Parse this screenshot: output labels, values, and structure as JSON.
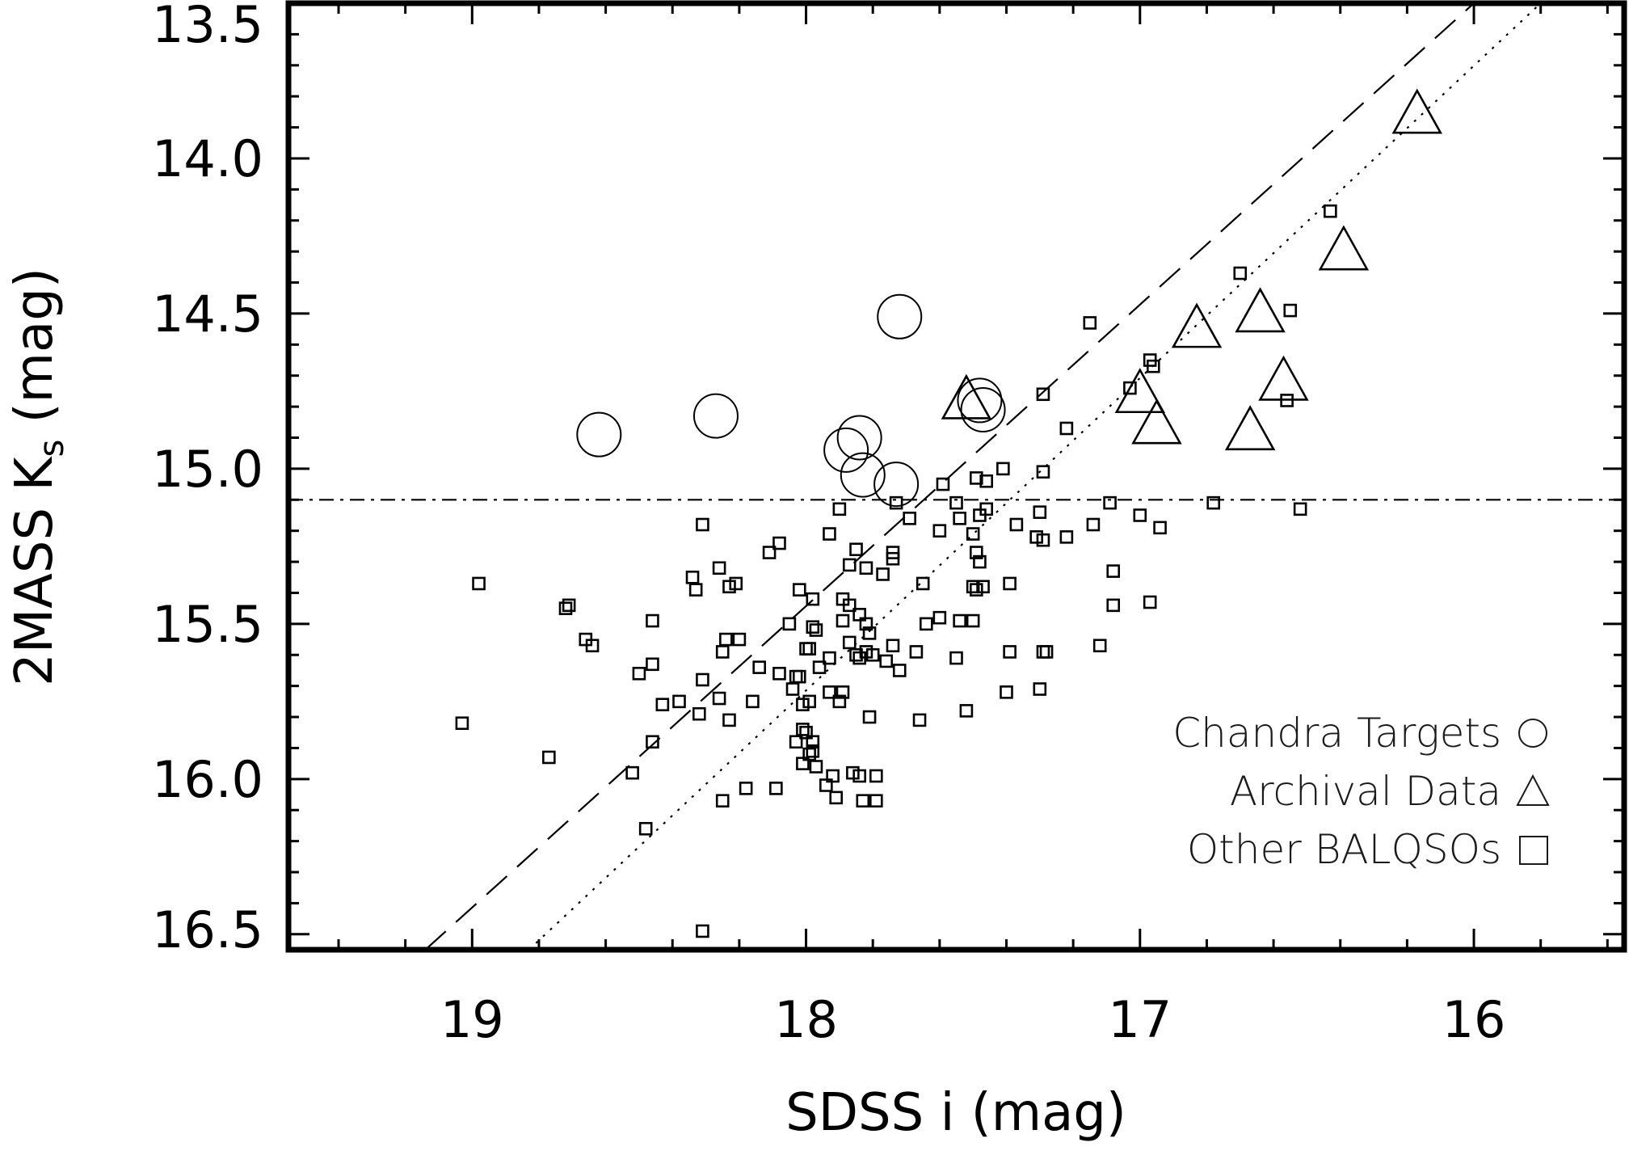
{
  "chart_data": {
    "type": "scatter",
    "xlabel": "SDSS i (mag)",
    "ylabel_main": "2MASS K",
    "ylabel_sub": "s",
    "ylabel_unit": " (mag)",
    "xlim": [
      19.55,
      15.55
    ],
    "ylim": [
      16.55,
      13.5
    ],
    "x_ticks": [
      19,
      18,
      17,
      16
    ],
    "x_tick_labels": [
      "19",
      "18",
      "17",
      "16"
    ],
    "y_ticks": [
      13.5,
      14.0,
      14.5,
      15.0,
      15.5,
      16.0,
      16.5
    ],
    "y_tick_labels": [
      "13.5",
      "14.0",
      "14.5",
      "15.0",
      "15.5",
      "16.0",
      "16.5"
    ],
    "grid": false,
    "legend_position": "bottom-right",
    "reference_lines": [
      {
        "style": "dashed",
        "points": [
          [
            19.14,
            16.55
          ],
          [
            16.0,
            13.5
          ]
        ]
      },
      {
        "style": "dotted",
        "points": [
          [
            18.83,
            16.55
          ],
          [
            15.8,
            13.5
          ]
        ]
      },
      {
        "style": "dash-dot",
        "points": [
          [
            19.55,
            15.1
          ],
          [
            15.55,
            15.1
          ]
        ]
      }
    ],
    "series": [
      {
        "name": "Chandra Targets",
        "marker": "circle",
        "points": [
          [
            18.62,
            14.89
          ],
          [
            18.27,
            14.83
          ],
          [
            17.72,
            14.51
          ],
          [
            17.48,
            14.78
          ],
          [
            17.47,
            14.81
          ],
          [
            17.84,
            14.9
          ],
          [
            17.88,
            14.94
          ],
          [
            17.83,
            15.02
          ],
          [
            17.73,
            15.05
          ]
        ]
      },
      {
        "name": "Archival Data",
        "marker": "triangle",
        "points": [
          [
            16.17,
            13.86
          ],
          [
            16.39,
            14.3
          ],
          [
            16.83,
            14.55
          ],
          [
            16.64,
            14.5
          ],
          [
            16.57,
            14.72
          ],
          [
            17.0,
            14.76
          ],
          [
            16.95,
            14.86
          ],
          [
            16.67,
            14.88
          ],
          [
            17.52,
            14.78
          ]
        ]
      },
      {
        "name": "Other BALQSOs",
        "marker": "square",
        "points": [
          [
            16.43,
            14.17
          ],
          [
            16.7,
            14.37
          ],
          [
            17.15,
            14.53
          ],
          [
            16.55,
            14.49
          ],
          [
            16.97,
            14.65
          ],
          [
            16.96,
            14.67
          ],
          [
            17.03,
            14.74
          ],
          [
            16.56,
            14.78
          ],
          [
            17.29,
            14.76
          ],
          [
            17.22,
            14.87
          ],
          [
            17.41,
            15.0
          ],
          [
            17.49,
            15.03
          ],
          [
            17.46,
            15.04
          ],
          [
            17.29,
            15.01
          ],
          [
            17.59,
            15.05
          ],
          [
            17.73,
            15.11
          ],
          [
            17.55,
            15.11
          ],
          [
            16.78,
            15.11
          ],
          [
            17.09,
            15.11
          ],
          [
            16.52,
            15.13
          ],
          [
            17.46,
            15.13
          ],
          [
            17.48,
            15.15
          ],
          [
            17.3,
            15.14
          ],
          [
            17.0,
            15.15
          ],
          [
            17.37,
            15.18
          ],
          [
            17.14,
            15.18
          ],
          [
            16.94,
            15.19
          ],
          [
            17.69,
            15.16
          ],
          [
            17.54,
            15.16
          ],
          [
            17.6,
            15.2
          ],
          [
            17.5,
            15.21
          ],
          [
            17.31,
            15.22
          ],
          [
            17.29,
            15.23
          ],
          [
            17.22,
            15.22
          ],
          [
            17.9,
            15.13
          ],
          [
            17.93,
            15.21
          ],
          [
            17.85,
            15.26
          ],
          [
            17.74,
            15.27
          ],
          [
            17.49,
            15.27
          ],
          [
            17.74,
            15.29
          ],
          [
            17.48,
            15.3
          ],
          [
            17.87,
            15.31
          ],
          [
            17.82,
            15.32
          ],
          [
            17.77,
            15.34
          ],
          [
            18.31,
            15.18
          ],
          [
            18.26,
            15.32
          ],
          [
            18.21,
            15.37
          ],
          [
            18.11,
            15.27
          ],
          [
            18.08,
            15.24
          ],
          [
            18.34,
            15.35
          ],
          [
            18.33,
            15.39
          ],
          [
            18.23,
            15.38
          ],
          [
            18.98,
            15.37
          ],
          [
            17.08,
            15.33
          ],
          [
            17.08,
            15.44
          ],
          [
            16.97,
            15.43
          ],
          [
            17.65,
            15.37
          ],
          [
            17.5,
            15.38
          ],
          [
            17.49,
            15.39
          ],
          [
            17.47,
            15.38
          ],
          [
            17.39,
            15.37
          ],
          [
            18.02,
            15.39
          ],
          [
            17.98,
            15.42
          ],
          [
            17.89,
            15.42
          ],
          [
            17.87,
            15.44
          ],
          [
            17.84,
            15.47
          ],
          [
            18.71,
            15.44
          ],
          [
            18.72,
            15.45
          ],
          [
            18.46,
            15.49
          ],
          [
            18.05,
            15.5
          ],
          [
            17.98,
            15.51
          ],
          [
            17.97,
            15.52
          ],
          [
            17.89,
            15.49
          ],
          [
            17.82,
            15.5
          ],
          [
            17.81,
            15.53
          ],
          [
            17.64,
            15.5
          ],
          [
            17.6,
            15.48
          ],
          [
            17.54,
            15.49
          ],
          [
            17.5,
            15.49
          ],
          [
            18.66,
            15.55
          ],
          [
            18.64,
            15.57
          ],
          [
            18.5,
            15.66
          ],
          [
            18.46,
            15.63
          ],
          [
            18.24,
            15.55
          ],
          [
            18.2,
            15.55
          ],
          [
            18.25,
            15.59
          ],
          [
            18.14,
            15.64
          ],
          [
            18.08,
            15.66
          ],
          [
            18.03,
            15.67
          ],
          [
            18.02,
            15.67
          ],
          [
            18.0,
            15.58
          ],
          [
            17.99,
            15.58
          ],
          [
            17.96,
            15.64
          ],
          [
            17.93,
            15.61
          ],
          [
            17.87,
            15.56
          ],
          [
            17.85,
            15.6
          ],
          [
            17.84,
            15.61
          ],
          [
            17.82,
            15.59
          ],
          [
            17.8,
            15.6
          ],
          [
            17.76,
            15.62
          ],
          [
            17.74,
            15.57
          ],
          [
            17.72,
            15.65
          ],
          [
            17.67,
            15.59
          ],
          [
            17.55,
            15.61
          ],
          [
            17.39,
            15.59
          ],
          [
            17.28,
            15.59
          ],
          [
            17.29,
            15.59
          ],
          [
            17.12,
            15.57
          ],
          [
            18.31,
            15.68
          ],
          [
            18.26,
            15.74
          ],
          [
            18.38,
            15.75
          ],
          [
            18.43,
            15.76
          ],
          [
            18.46,
            15.88
          ],
          [
            18.52,
            15.98
          ],
          [
            18.77,
            15.93
          ],
          [
            19.03,
            15.82
          ],
          [
            18.32,
            15.79
          ],
          [
            18.23,
            15.81
          ],
          [
            18.16,
            15.75
          ],
          [
            18.04,
            15.71
          ],
          [
            18.01,
            15.76
          ],
          [
            17.99,
            15.75
          ],
          [
            17.93,
            15.72
          ],
          [
            17.9,
            15.75
          ],
          [
            17.89,
            15.72
          ],
          [
            17.81,
            15.8
          ],
          [
            17.66,
            15.81
          ],
          [
            17.52,
            15.78
          ],
          [
            17.4,
            15.72
          ],
          [
            17.3,
            15.71
          ],
          [
            18.01,
            15.84
          ],
          [
            17.98,
            15.88
          ],
          [
            18.03,
            15.88
          ],
          [
            17.99,
            15.92
          ],
          [
            18.0,
            15.85
          ],
          [
            18.01,
            15.95
          ],
          [
            17.98,
            15.91
          ],
          [
            17.94,
            16.02
          ],
          [
            17.91,
            16.06
          ],
          [
            17.92,
            15.99
          ],
          [
            17.84,
            15.99
          ],
          [
            17.86,
            15.98
          ],
          [
            17.83,
            16.07
          ],
          [
            17.79,
            16.07
          ],
          [
            18.09,
            16.03
          ],
          [
            18.18,
            16.03
          ],
          [
            18.25,
            16.07
          ],
          [
            18.48,
            16.16
          ],
          [
            18.31,
            16.49
          ],
          [
            17.97,
            15.96
          ],
          [
            17.79,
            15.99
          ]
        ]
      }
    ]
  },
  "legend": [
    {
      "label": "Chandra Targets",
      "marker": "circle-icon"
    },
    {
      "label": "Archival Data",
      "marker": "triangle-icon"
    },
    {
      "label": "Other BALQSOs",
      "marker": "square-icon"
    }
  ]
}
